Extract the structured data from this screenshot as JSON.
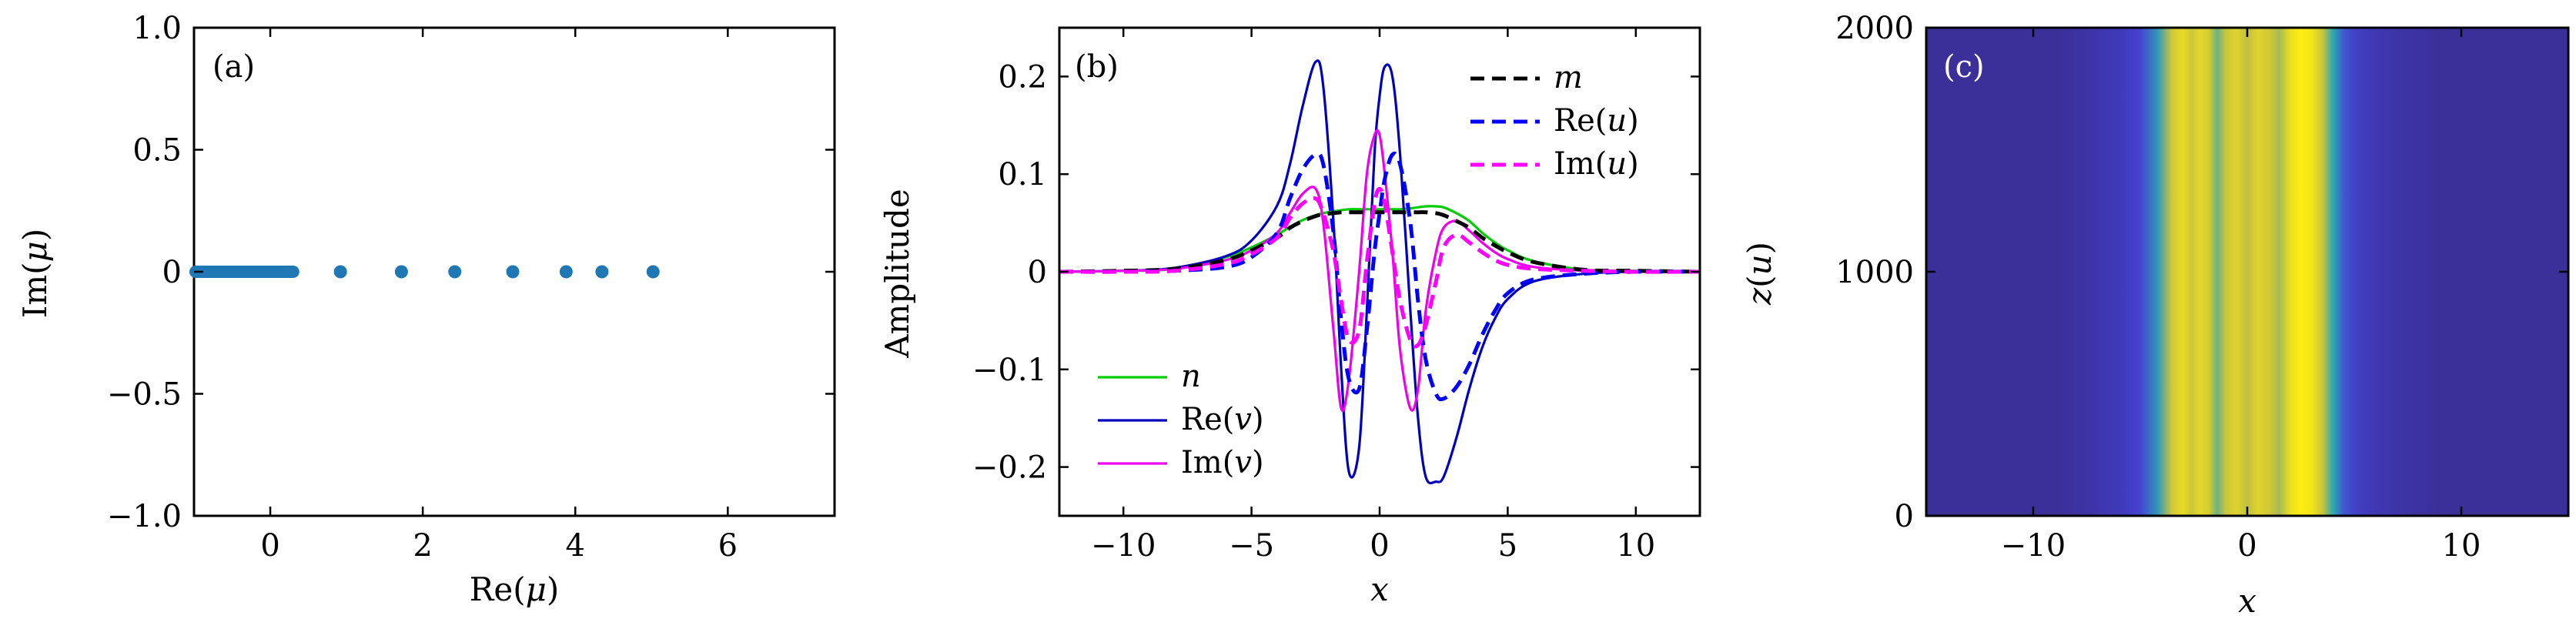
{
  "chart_data": [
    {
      "panel": "a",
      "type": "scatter",
      "tag": "(a)",
      "xlabel": "Re(μ)",
      "ylabel": "Im(μ)",
      "xlim": [
        -1.0,
        7.4
      ],
      "ylim": [
        -1.0,
        1.0
      ],
      "xticks": [
        0,
        2,
        4,
        6
      ],
      "xtick_labels": [
        "0",
        "2",
        "4",
        "6"
      ],
      "yticks": [
        -1.0,
        -0.5,
        0,
        0.5,
        1.0
      ],
      "ytick_labels": [
        "−1.0",
        "−0.5",
        "0",
        "0.5",
        "1.0"
      ],
      "color": "#1f77b4",
      "dense_band": [
        -1.0,
        0.3
      ],
      "points": [
        0.92,
        1.72,
        2.42,
        3.18,
        3.88,
        4.35,
        5.02
      ],
      "point_im": 0
    },
    {
      "panel": "b",
      "type": "line",
      "tag": "(b)",
      "xlabel": "x",
      "ylabel": "Amplitude",
      "xlim": [
        -12.5,
        12.5
      ],
      "ylim": [
        -0.25,
        0.25
      ],
      "xticks": [
        -10,
        -5,
        0,
        5,
        10
      ],
      "xtick_labels": [
        "−10",
        "−5",
        "0",
        "5",
        "10"
      ],
      "yticks": [
        -0.2,
        -0.1,
        0,
        0.1,
        0.2
      ],
      "ytick_labels": [
        "−0.2",
        "−0.1",
        "0",
        "0.1",
        "0.2"
      ],
      "x_samples": [
        -12.5,
        -10,
        -8,
        -6,
        -5,
        -4,
        -3.5,
        -3,
        -2.5,
        -2.2,
        -1.8,
        -1.5,
        -1.2,
        -0.8,
        -0.5,
        -0.2,
        0,
        0.2,
        0.5,
        0.8,
        1.2,
        1.5,
        1.8,
        2.2,
        2.5,
        3,
        3.5,
        4,
        4.5,
        5,
        6,
        8,
        10,
        12.5
      ],
      "series": [
        {
          "name": "m",
          "label_main": "m",
          "label_italic": true,
          "color": "#000000",
          "style": "dashed",
          "values": [
            0,
            0.001,
            0.003,
            0.012,
            0.022,
            0.035,
            0.045,
            0.052,
            0.057,
            0.059,
            0.06,
            0.061,
            0.061,
            0.061,
            0.061,
            0.061,
            0.061,
            0.061,
            0.061,
            0.061,
            0.061,
            0.061,
            0.061,
            0.06,
            0.058,
            0.052,
            0.045,
            0.035,
            0.027,
            0.02,
            0.01,
            0.002,
            0.001,
            0
          ]
        },
        {
          "name": "Re(u)",
          "label_main": "Re(",
          "label_var": "u",
          "label_close": ")",
          "color": "#0000ff",
          "style": "dashed",
          "values": [
            0,
            0,
            0.001,
            0.005,
            0.015,
            0.04,
            0.075,
            0.105,
            0.12,
            0.11,
            0.04,
            -0.05,
            -0.11,
            -0.12,
            -0.06,
            0.02,
            0.06,
            0.095,
            0.12,
            0.11,
            0.05,
            -0.03,
            -0.09,
            -0.125,
            -0.13,
            -0.118,
            -0.095,
            -0.065,
            -0.04,
            -0.022,
            -0.008,
            -0.002,
            0,
            0
          ]
        },
        {
          "name": "Im(u)",
          "label_main": "Im(",
          "label_var": "u",
          "label_close": ")",
          "color": "#ff00ff",
          "style": "dashed",
          "values": [
            0,
            0,
            0.001,
            0.008,
            0.018,
            0.035,
            0.055,
            0.07,
            0.075,
            0.06,
            0.02,
            -0.03,
            -0.07,
            -0.06,
            0.01,
            0.07,
            0.085,
            0.07,
            0.02,
            -0.03,
            -0.07,
            -0.075,
            -0.055,
            -0.01,
            0.025,
            0.038,
            0.03,
            0.02,
            0.012,
            0.007,
            0.003,
            0.001,
            0,
            0
          ]
        },
        {
          "name": "n",
          "label_main": "n",
          "label_italic": true,
          "color": "#00cc00",
          "style": "solid",
          "values": [
            0,
            0.001,
            0.003,
            0.015,
            0.025,
            0.038,
            0.046,
            0.053,
            0.058,
            0.06,
            0.062,
            0.063,
            0.064,
            0.064,
            0.064,
            0.064,
            0.064,
            0.064,
            0.064,
            0.064,
            0.065,
            0.066,
            0.067,
            0.067,
            0.066,
            0.06,
            0.052,
            0.04,
            0.03,
            0.022,
            0.011,
            0.002,
            0.001,
            0
          ]
        },
        {
          "name": "Re(v)",
          "label_main": "Re(",
          "label_var": "v",
          "label_close": ")",
          "color": "#0000bb",
          "style": "solid",
          "values": [
            0,
            0.001,
            0.004,
            0.016,
            0.032,
            0.068,
            0.11,
            0.17,
            0.215,
            0.19,
            0.05,
            -0.1,
            -0.205,
            -0.18,
            -0.04,
            0.12,
            0.18,
            0.21,
            0.2,
            0.12,
            -0.04,
            -0.15,
            -0.21,
            -0.215,
            -0.21,
            -0.17,
            -0.12,
            -0.078,
            -0.048,
            -0.028,
            -0.01,
            -0.002,
            0,
            0
          ]
        },
        {
          "name": "Im(v)",
          "label_main": "Im(",
          "label_var": "v",
          "label_close": ")",
          "color": "#ee00ee",
          "style": "solid",
          "values": [
            0,
            0.001,
            0.003,
            0.012,
            0.022,
            0.04,
            0.06,
            0.08,
            0.085,
            0.05,
            -0.06,
            -0.14,
            -0.11,
            0.0,
            0.1,
            0.14,
            0.14,
            0.1,
            0.02,
            -0.08,
            -0.14,
            -0.12,
            -0.04,
            0.02,
            0.045,
            0.052,
            0.042,
            0.03,
            0.02,
            0.013,
            0.005,
            0.001,
            0,
            0
          ]
        }
      ]
    },
    {
      "panel": "c",
      "type": "heatmap",
      "tag": "(c)",
      "xlabel": "x",
      "ylabel": "z(u)",
      "xlim": [
        -15,
        15
      ],
      "ylim": [
        0,
        2000
      ],
      "xticks": [
        -10,
        0,
        10
      ],
      "xtick_labels": [
        "−10",
        "0",
        "10"
      ],
      "yticks": [
        0,
        1000,
        2000
      ],
      "ytick_labels": [
        "0",
        "1000",
        "2000"
      ],
      "colormap": [
        "#3b2f9a",
        "#4646d8",
        "#2aa9b0",
        "#c5c040",
        "#ffee10"
      ],
      "profile_x": [
        -15,
        -9,
        -7.5,
        -6,
        -5,
        -4.2,
        -3.5,
        -3,
        -2.6,
        -2.2,
        -1.8,
        -1.4,
        -1,
        -0.5,
        0,
        0.5,
        1,
        1.5,
        2,
        2.5,
        3,
        3.5,
        4,
        4.5,
        5,
        6,
        7.5,
        9,
        15
      ],
      "profile_v": [
        0,
        0,
        0.04,
        0.12,
        0.22,
        0.45,
        0.8,
        0.9,
        0.78,
        0.88,
        0.82,
        0.6,
        0.78,
        0.86,
        0.74,
        0.86,
        0.8,
        0.7,
        0.92,
        1.0,
        0.95,
        0.78,
        0.5,
        0.3,
        0.18,
        0.1,
        0.04,
        0,
        0
      ]
    }
  ]
}
